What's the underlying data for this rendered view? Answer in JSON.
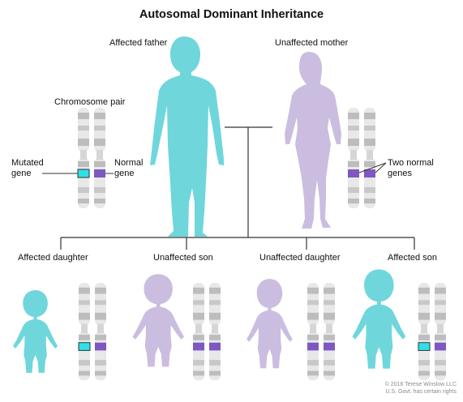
{
  "title": "Autosomal Dominant Inheritance",
  "labels": {
    "affected_father": "Affected father",
    "unaffected_mother": "Unaffected mother",
    "chromosome_pair": "Chromosome pair",
    "mutated_gene_line1": "Mutated",
    "mutated_gene_line2": "gene",
    "normal_gene_line1": "Normal",
    "normal_gene_line2": "gene",
    "two_normal_line1": "Two normal",
    "two_normal_line2": "genes",
    "affected_daughter": "Affected daughter",
    "unaffected_son": "Unaffected son",
    "unaffected_daughter": "Unaffected daughter",
    "affected_son": "Affected son"
  },
  "copyright": {
    "line1": "© 2016 Terese Winslow LLC",
    "line2": "U.S. Govt. has certain rights"
  },
  "colors": {
    "affected": "#6fd6dc",
    "unaffected": "#cbbde0",
    "mutated_gene": "#2ee0e8",
    "normal_gene": "#7e57c2",
    "chromosome_band": "#bdbdbd",
    "chromosome_light": "#e8e8e8",
    "line": "#333333"
  },
  "icons": [
    "adult-male-silhouette-icon",
    "adult-female-silhouette-icon",
    "child-silhouette-icon",
    "chromosome-icon"
  ]
}
